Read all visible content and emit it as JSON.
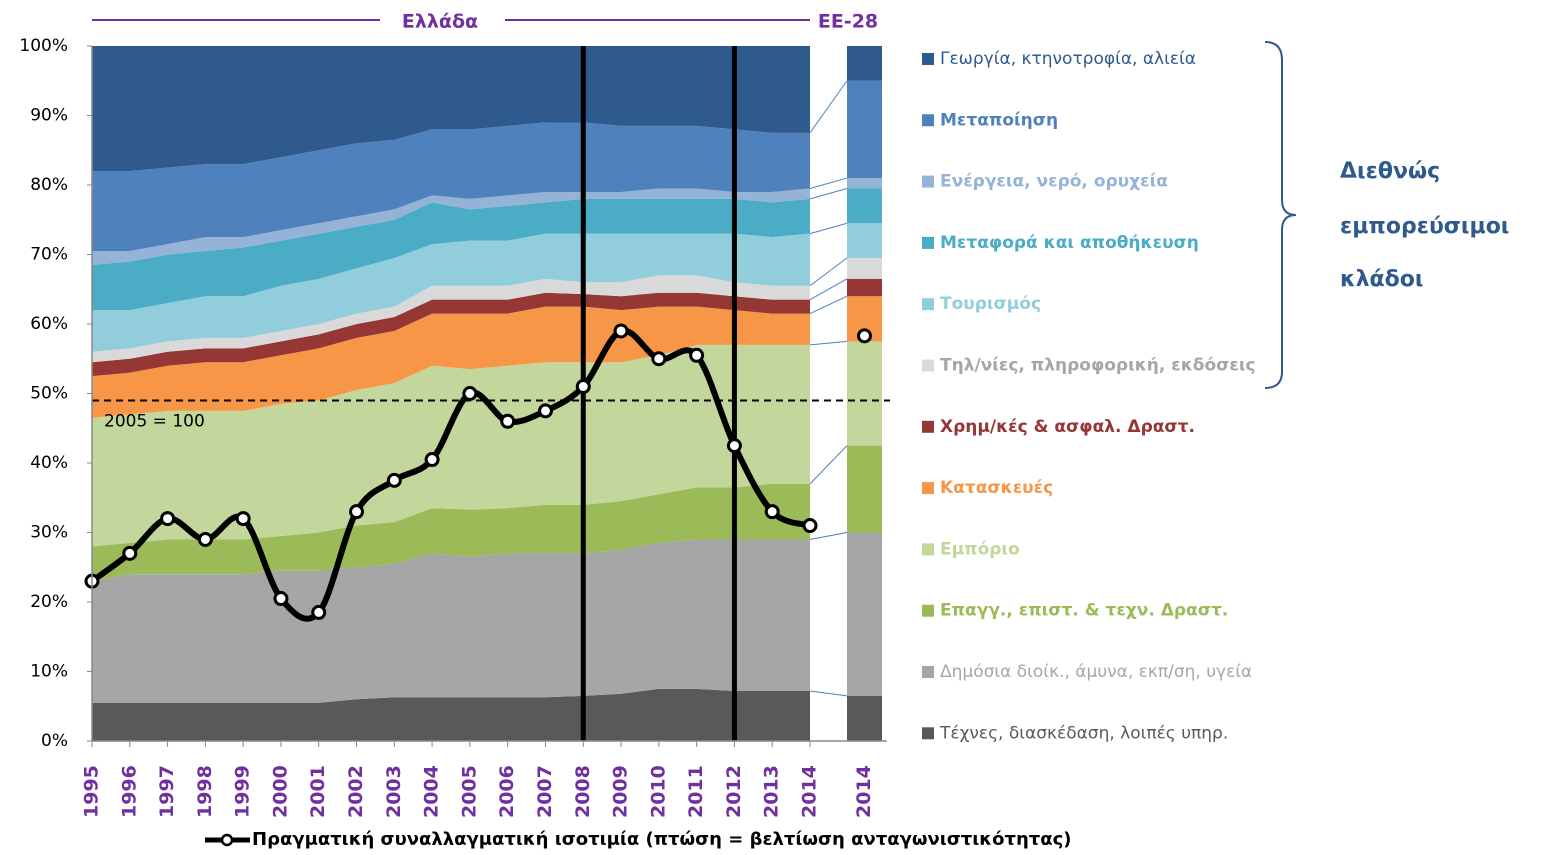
{
  "chart_data": {
    "type": "stacked-area",
    "header_left": "Ελλάδα",
    "header_right": "ΕΕ-28",
    "categories": [
      "1995",
      "1996",
      "1997",
      "1998",
      "1999",
      "2000",
      "2001",
      "2002",
      "2003",
      "2004",
      "2005",
      "2006",
      "2007",
      "2008",
      "2009",
      "2010",
      "2011",
      "2012",
      "2013",
      "2014"
    ],
    "eu_category": "2014",
    "ylim": [
      0,
      100
    ],
    "yticks": [
      {
        "value": 0,
        "label": "0%"
      },
      {
        "value": 10,
        "label": "10%"
      },
      {
        "value": 20,
        "label": "20%"
      },
      {
        "value": 30,
        "label": "30%"
      },
      {
        "value": 40,
        "label": "40%"
      },
      {
        "value": 50,
        "label": "50%"
      },
      {
        "value": 60,
        "label": "60%"
      },
      {
        "value": 70,
        "label": "70%"
      },
      {
        "value": 80,
        "label": "80%"
      },
      {
        "value": 90,
        "label": "90%"
      },
      {
        "value": 100,
        "label": "100%"
      }
    ],
    "series": [
      {
        "name": "Τέχνες, διασκέδαση, λοιπές υπηρ.",
        "color": "#595959",
        "values": [
          5.5,
          5.5,
          5.5,
          5.5,
          5.5,
          5.5,
          5.5,
          6,
          6.3,
          6.3,
          6.3,
          6.3,
          6.3,
          6.5,
          6.8,
          7.5,
          7.5,
          7.2,
          7.2,
          7.2
        ],
        "eu_value": 6.5
      },
      {
        "name": "Δημόσια διοίκ., άμυνα, εκπ/ση, υγεία",
        "color": "#a6a6a6",
        "values": [
          17.5,
          18.5,
          18.5,
          18.5,
          18.5,
          19,
          19,
          19,
          19.2,
          20.7,
          20.2,
          20.7,
          20.7,
          20.5,
          20.7,
          21,
          21.5,
          21.8,
          21.8,
          21.8
        ],
        "eu_value": 23.5
      },
      {
        "name": "Επαγγ., επιστ. & τεχν. Δραστ.",
        "color": "#9bbb59",
        "values": [
          5,
          4.5,
          5,
          5,
          5,
          5,
          5.5,
          6,
          6,
          6.5,
          6.8,
          6.5,
          7,
          7,
          7,
          7,
          7.5,
          7.5,
          8,
          8
        ],
        "eu_value": 12.5
      },
      {
        "name": "Εμπόριο",
        "color": "#c3d69b",
        "values": [
          18.5,
          18.5,
          18.5,
          18.5,
          18.5,
          19,
          19,
          19.5,
          20,
          20.5,
          20.2,
          20.5,
          20.5,
          20.5,
          20,
          20,
          20.5,
          20.5,
          20,
          20
        ],
        "eu_value": 15
      },
      {
        "name": "Κατασκευές",
        "color": "#f79646",
        "values": [
          6,
          6,
          6.5,
          7,
          7,
          7,
          7.5,
          7.5,
          7.5,
          7.5,
          8,
          7.5,
          8,
          8,
          7.5,
          7,
          5.5,
          5,
          4.5,
          4.5
        ],
        "eu_value": 6.5
      },
      {
        "name": "Χρημ/κές & ασφαλ. Δραστ.",
        "color": "#953735",
        "values": [
          2,
          2,
          2,
          2,
          2,
          2,
          2,
          2,
          2,
          2,
          2,
          2,
          2,
          1.8,
          2,
          2,
          2,
          2,
          2,
          2
        ],
        "eu_value": 2.5
      },
      {
        "name": "Τηλ/νίες, πληροφορική, εκδόσεις",
        "color": "#d9d9d9",
        "values": [
          1.5,
          1.5,
          1.5,
          1.5,
          1.5,
          1.5,
          1.5,
          1.5,
          1.5,
          2,
          2,
          2,
          2,
          1.7,
          2,
          2.5,
          2.5,
          2,
          2,
          2
        ],
        "eu_value": 3
      },
      {
        "name": "Τουρισμός",
        "color": "#92cddc",
        "values": [
          6,
          5.5,
          5.5,
          6,
          6,
          6.5,
          6.5,
          6.5,
          7,
          6,
          6.5,
          6.5,
          6.5,
          7,
          7,
          6,
          6,
          7,
          7,
          7.5
        ],
        "eu_value": 5
      },
      {
        "name": "Μεταφορά και αποθήκευση",
        "color": "#4bacc6",
        "values": [
          6.5,
          7,
          7,
          6.5,
          7,
          6.5,
          6.5,
          6,
          5.5,
          6,
          4.5,
          5,
          4.5,
          5,
          5,
          5,
          5,
          5,
          5,
          5
        ],
        "eu_value": 5
      },
      {
        "name": "Ενέργεια, νερό, ορυχεία",
        "color": "#95b3d7",
        "values": [
          2,
          1.5,
          1.5,
          2,
          1.5,
          1.5,
          1.5,
          1.5,
          1.5,
          1,
          1.5,
          1.5,
          1.5,
          1,
          1,
          1.5,
          1.5,
          1,
          1.5,
          1.5
        ],
        "eu_value": 1.5
      },
      {
        "name": "Μεταποίηση",
        "color": "#4f81bd",
        "values": [
          11.5,
          11.5,
          11,
          10.5,
          10.5,
          10.5,
          10.5,
          10.5,
          10,
          9.5,
          10,
          10,
          10,
          10,
          9.5,
          9,
          9,
          9,
          8.5,
          8
        ],
        "eu_value": 14
      },
      {
        "name": "Γεωργία, κτηνοτροφία, αλιεία",
        "color": "#2e5a8e",
        "values": [
          18,
          18,
          17.5,
          17,
          17,
          16,
          15,
          14,
          13.5,
          12,
          12,
          11.5,
          11,
          11,
          11.5,
          11.5,
          11.5,
          12,
          12.5,
          12.5
        ],
        "eu_value": 5
      }
    ],
    "line": {
      "name": "Πραγματική συναλλαγματική ισοτιμία (πτώση = βελτίωση ανταγωνιστικότητας)",
      "color": "#000000",
      "values": [
        23,
        27,
        32,
        29,
        32,
        20.5,
        18.5,
        33,
        37.5,
        40.5,
        50,
        46,
        47.5,
        51,
        59,
        55,
        55.5,
        42.5,
        33,
        31
      ],
      "eu_value": 58.3
    },
    "reference": {
      "value": 49,
      "label": "2005 = 100"
    },
    "bracket_label": [
      "Διεθνώς",
      "εμπορεύσιμοι",
      "κλάδοι"
    ]
  }
}
